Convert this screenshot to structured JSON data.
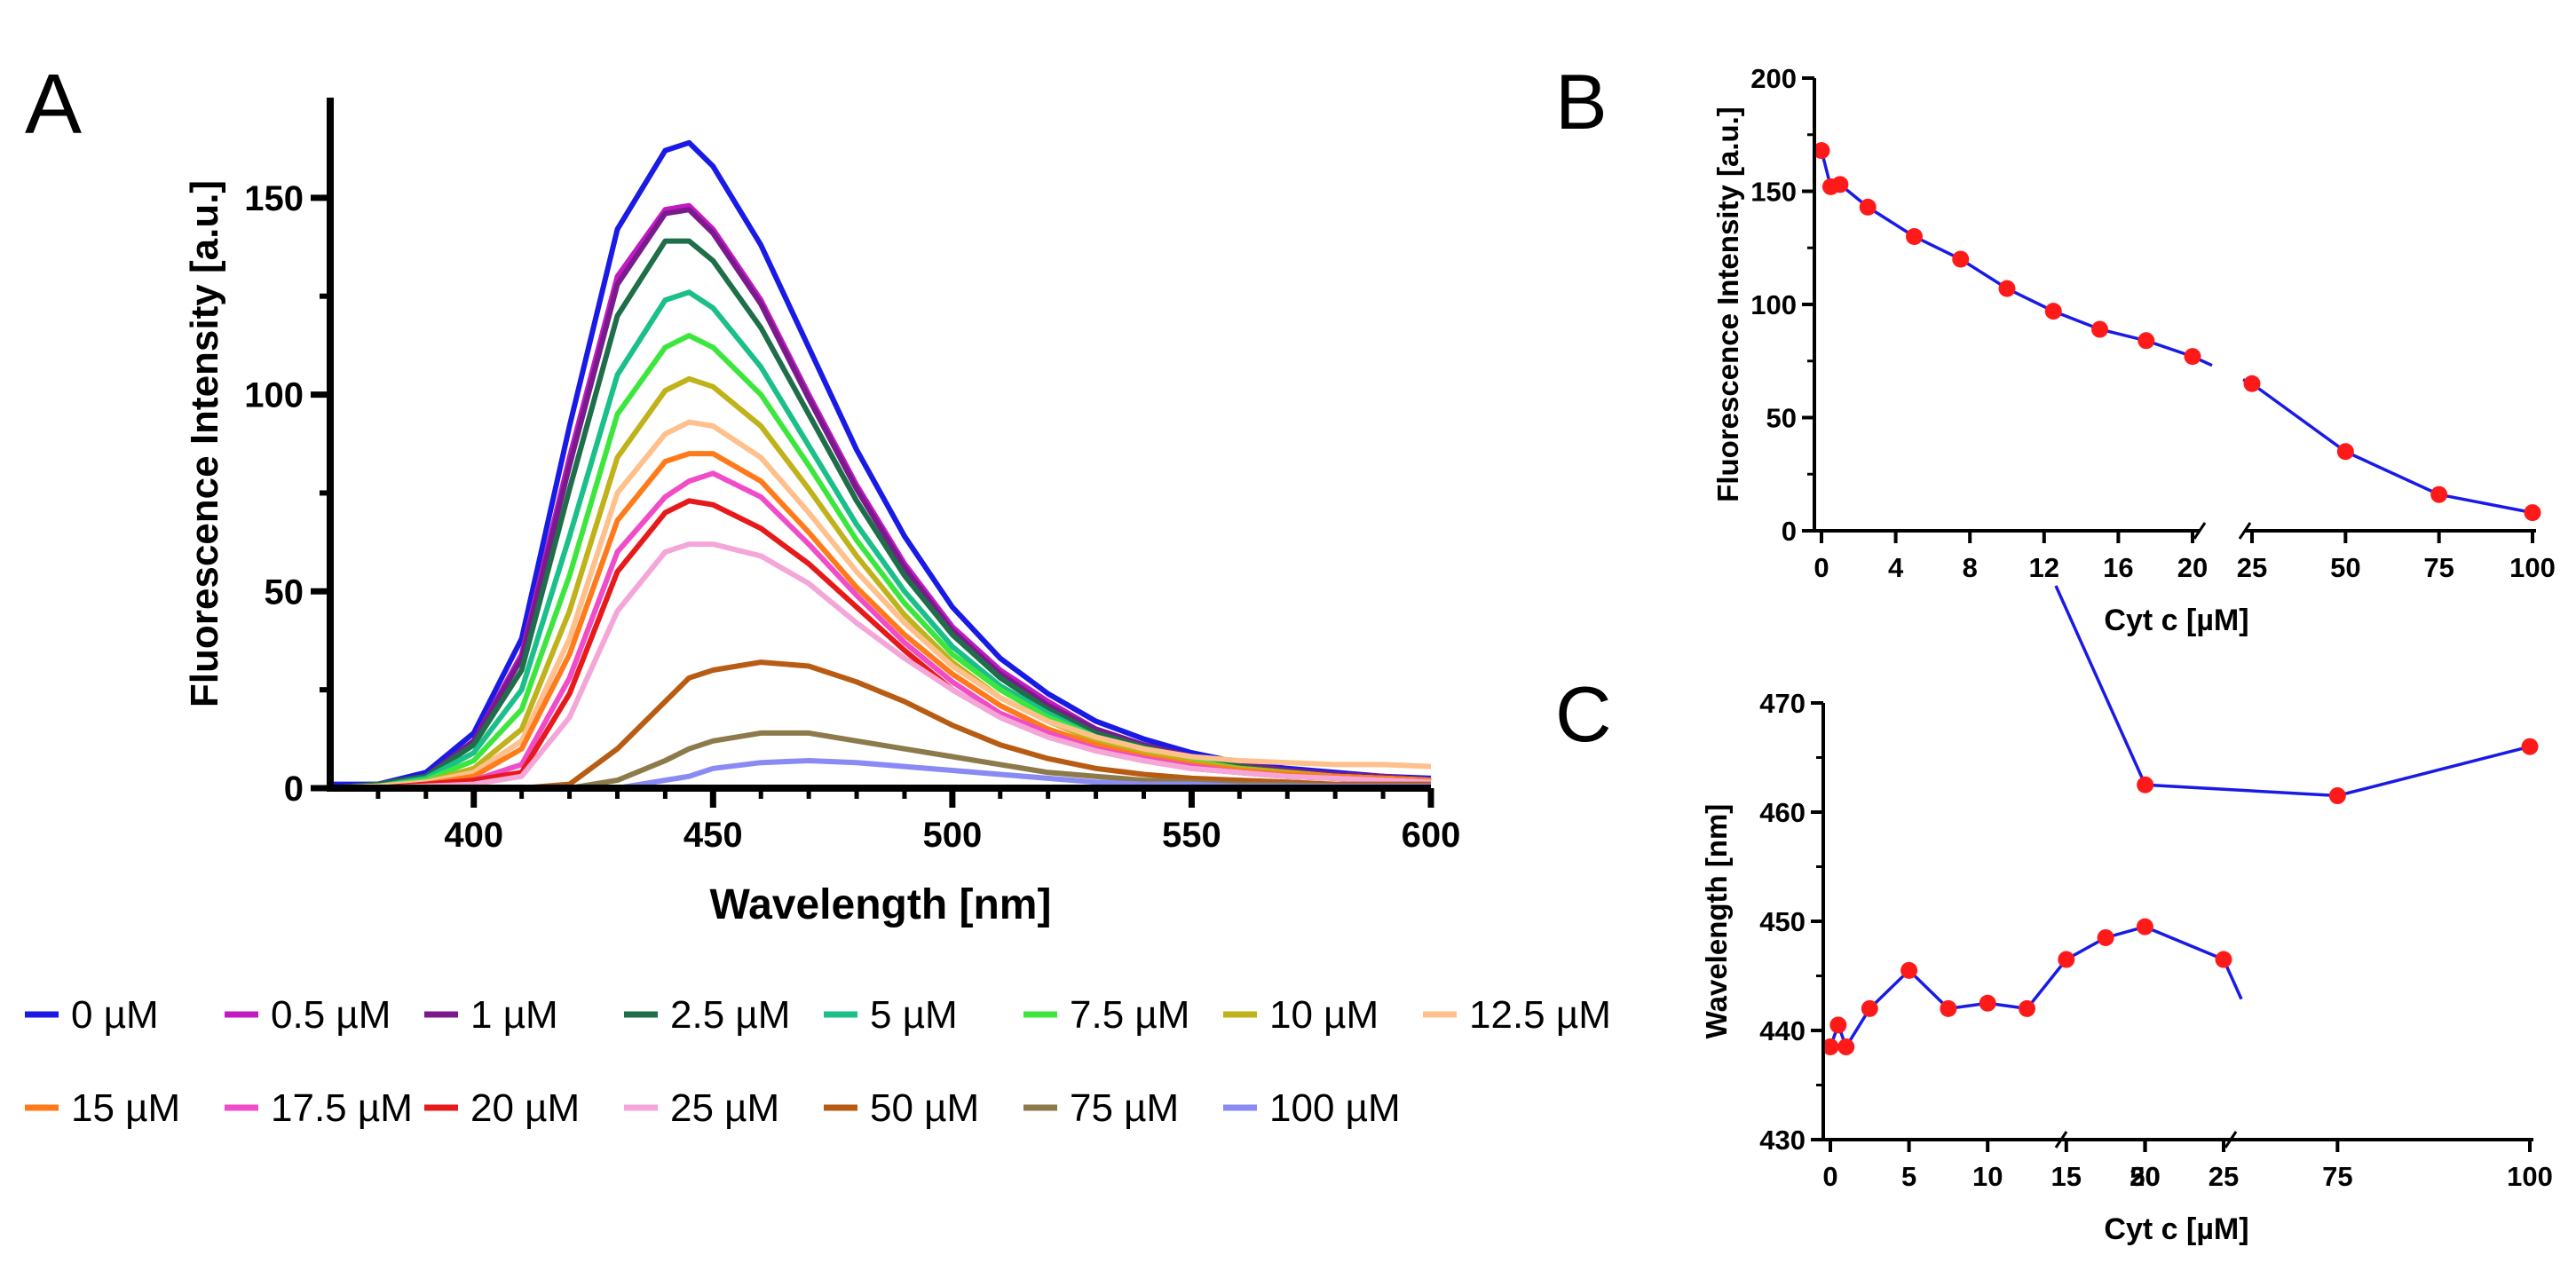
{
  "chart_data": [
    {
      "panel": "A",
      "type": "line",
      "xlabel": "Wavelength [nm]",
      "ylabel": "Fluorescence Intensity [a.u.]",
      "xlim": [
        370,
        600
      ],
      "ylim": [
        0,
        175
      ],
      "xticks": [
        400,
        450,
        500,
        550,
        600
      ],
      "yticks": [
        0,
        50,
        100,
        150
      ],
      "x": [
        370,
        380,
        390,
        400,
        410,
        420,
        430,
        440,
        445,
        450,
        460,
        470,
        480,
        490,
        500,
        510,
        520,
        530,
        540,
        550,
        560,
        570,
        580,
        590,
        600
      ],
      "series": [
        {
          "name": "0 µM",
          "color": "#1a1ae6",
          "values": [
            1,
            1,
            4,
            14,
            38,
            92,
            142,
            162,
            164,
            158,
            138,
            112,
            86,
            64,
            46,
            33,
            24,
            17,
            12.5,
            9,
            6.5,
            5,
            4,
            3,
            2.5
          ]
        },
        {
          "name": "0.5 µM",
          "color": "#c21ac2",
          "values": [
            0,
            1,
            3,
            12,
            34,
            84,
            130,
            147,
            148,
            142,
            124,
            100,
            77,
            57,
            41,
            30,
            22,
            15,
            11,
            8,
            6,
            4.5,
            3.5,
            3,
            2
          ]
        },
        {
          "name": "1 µM",
          "color": "#7a1a8c",
          "values": [
            0,
            1,
            3,
            12,
            33,
            82,
            128,
            146,
            147,
            141,
            123,
            99,
            76,
            56,
            40,
            29,
            21,
            15,
            11,
            8,
            6,
            4.5,
            3.5,
            3,
            2
          ]
        },
        {
          "name": "2.5 µM",
          "color": "#1f6e4a",
          "values": [
            0,
            1,
            3,
            11,
            30,
            76,
            120,
            139,
            139,
            134,
            117,
            95,
            73,
            54,
            39,
            28,
            20,
            14,
            10.5,
            7.5,
            5.5,
            4,
            3,
            2.5,
            2
          ]
        },
        {
          "name": "5 µM",
          "color": "#1abf8a",
          "values": [
            0,
            0.5,
            2.5,
            9,
            25,
            64,
            105,
            124,
            126,
            122,
            107,
            87,
            67,
            50,
            36,
            26,
            19,
            13,
            10,
            7,
            5,
            4,
            3,
            2.5,
            2
          ]
        },
        {
          "name": "7.5 µM",
          "color": "#3de63d",
          "values": [
            0,
            0.5,
            2,
            7,
            20,
            54,
            95,
            112,
            115,
            112,
            100,
            82,
            63,
            47,
            34,
            25,
            18,
            13,
            9.5,
            7,
            5,
            4,
            3,
            2.5,
            2
          ]
        },
        {
          "name": "10 µM",
          "color": "#bfb21a",
          "values": [
            0,
            0.5,
            1.5,
            5,
            15,
            45,
            84,
            101,
            104,
            102,
            92,
            76,
            59,
            44,
            32,
            23,
            17,
            12,
            9,
            6.5,
            5,
            4,
            3,
            2.5,
            2
          ]
        },
        {
          "name": "12.5 µM",
          "color": "#ffc08c",
          "values": [
            0,
            0.5,
            1.5,
            4,
            12,
            38,
            75,
            90,
            93,
            92,
            84,
            70,
            55,
            42,
            31,
            23,
            17,
            13,
            10,
            8,
            7,
            6.5,
            6,
            6,
            5.5
          ]
        },
        {
          "name": "15 µM",
          "color": "#ff7a1a",
          "values": [
            0,
            0,
            1,
            3,
            10,
            34,
            68,
            83,
            85,
            85,
            78,
            65,
            51,
            39,
            29,
            21,
            15,
            11,
            8,
            6,
            4.5,
            3.5,
            3,
            2.5,
            2
          ]
        },
        {
          "name": "17.5 µM",
          "color": "#f04cc8",
          "values": [
            0,
            0,
            1,
            2,
            6,
            28,
            60,
            74,
            78,
            80,
            74,
            62,
            49,
            37,
            27,
            19,
            14,
            10,
            7.5,
            5.5,
            4,
            3,
            2.5,
            2,
            1.5
          ]
        },
        {
          "name": "20 µM",
          "color": "#e61a1a",
          "values": [
            0,
            0,
            1,
            2,
            4,
            24,
            55,
            70,
            73,
            72,
            66,
            57,
            46,
            35,
            25,
            18,
            13,
            9.5,
            7,
            5,
            4,
            3,
            2.5,
            2,
            1.5
          ]
        },
        {
          "name": "25 µM",
          "color": "#f5a6d9",
          "values": [
            0,
            0,
            0.5,
            1,
            3,
            18,
            45,
            60,
            62,
            62,
            59,
            52,
            42,
            33,
            25,
            18,
            13,
            9.5,
            7,
            5,
            4,
            3,
            2.5,
            2,
            1.5
          ]
        },
        {
          "name": "50 µM",
          "color": "#b85c14",
          "values": [
            0,
            0,
            0,
            0,
            0,
            1,
            10,
            22,
            28,
            30,
            32,
            31,
            27,
            22,
            16,
            11,
            7.5,
            5,
            3.5,
            2.5,
            2,
            1.5,
            1,
            1,
            1
          ]
        },
        {
          "name": "75 µM",
          "color": "#8c7a4a",
          "values": [
            0,
            0,
            0,
            0,
            0,
            0,
            2,
            7,
            10,
            12,
            14,
            14,
            12,
            10,
            8,
            6,
            4,
            3,
            2,
            1.5,
            1,
            1,
            0.5,
            0.5,
            0.5
          ]
        },
        {
          "name": "100 µM",
          "color": "#8a8af5",
          "values": [
            0,
            0,
            0,
            0,
            0,
            0,
            0,
            2,
            3,
            5,
            6.5,
            7,
            6.5,
            5.5,
            4.5,
            3.5,
            2.5,
            1.5,
            1,
            1,
            0.5,
            0.5,
            0.5,
            0.5,
            0.5
          ]
        }
      ]
    },
    {
      "panel": "B",
      "type": "line",
      "marker": "circle",
      "line_color": "#1a1ae6",
      "marker_color": "#ff1a1a",
      "xlabel": "Cyt c [µM]",
      "ylabel": "Fluorescence Intensity [a.u.]",
      "ylim": [
        0,
        200
      ],
      "yticks": [
        0,
        50,
        100,
        150,
        200
      ],
      "x_segments": [
        {
          "xlim": [
            0,
            20
          ],
          "ticks": [
            0,
            4,
            8,
            12,
            16,
            20
          ],
          "tick_labels": [
            "0",
            "4",
            "8",
            "12",
            "16",
            "20"
          ]
        },
        {
          "xlim": [
            25,
            100
          ],
          "ticks": [
            25,
            50,
            75,
            100
          ],
          "tick_labels": [
            "25",
            "50",
            "75",
            "100"
          ]
        }
      ],
      "x": [
        0,
        0.5,
        1,
        2.5,
        5,
        7.5,
        10,
        12.5,
        15,
        17.5,
        20,
        25,
        50,
        75,
        100
      ],
      "values": [
        168,
        152,
        153,
        143,
        130,
        120,
        107,
        97,
        89,
        84,
        77,
        65,
        35,
        16,
        8
      ]
    },
    {
      "panel": "C",
      "type": "line",
      "marker": "circle",
      "line_color": "#1a1ae6",
      "marker_color": "#ff1a1a",
      "xlabel": "Cyt c [µM]",
      "ylabel": "Wavelength [nm]",
      "ylim": [
        430,
        470
      ],
      "yticks": [
        430,
        440,
        450,
        460,
        470
      ],
      "x_segments": [
        {
          "xlim": [
            0,
            25
          ],
          "ticks": [
            0,
            5,
            10,
            15,
            20,
            25
          ],
          "tick_labels": [
            "0",
            "5",
            "10",
            "15",
            "20",
            "25"
          ]
        },
        {
          "xlim": [
            40,
            100
          ],
          "ticks": [
            50,
            75,
            100
          ],
          "tick_labels": [
            "50",
            "75",
            "100"
          ]
        }
      ],
      "x": [
        0,
        0.5,
        1,
        2.5,
        5,
        7.5,
        10,
        12.5,
        15,
        17.5,
        20,
        25,
        50,
        75,
        100
      ],
      "values": [
        438.5,
        440.5,
        438.5,
        442,
        445.5,
        442,
        442.5,
        442,
        446.5,
        448.5,
        449.5,
        446.5,
        462.5,
        461.5,
        466
      ]
    }
  ],
  "panel_labels": {
    "A": "A",
    "B": "B",
    "C": "C"
  }
}
